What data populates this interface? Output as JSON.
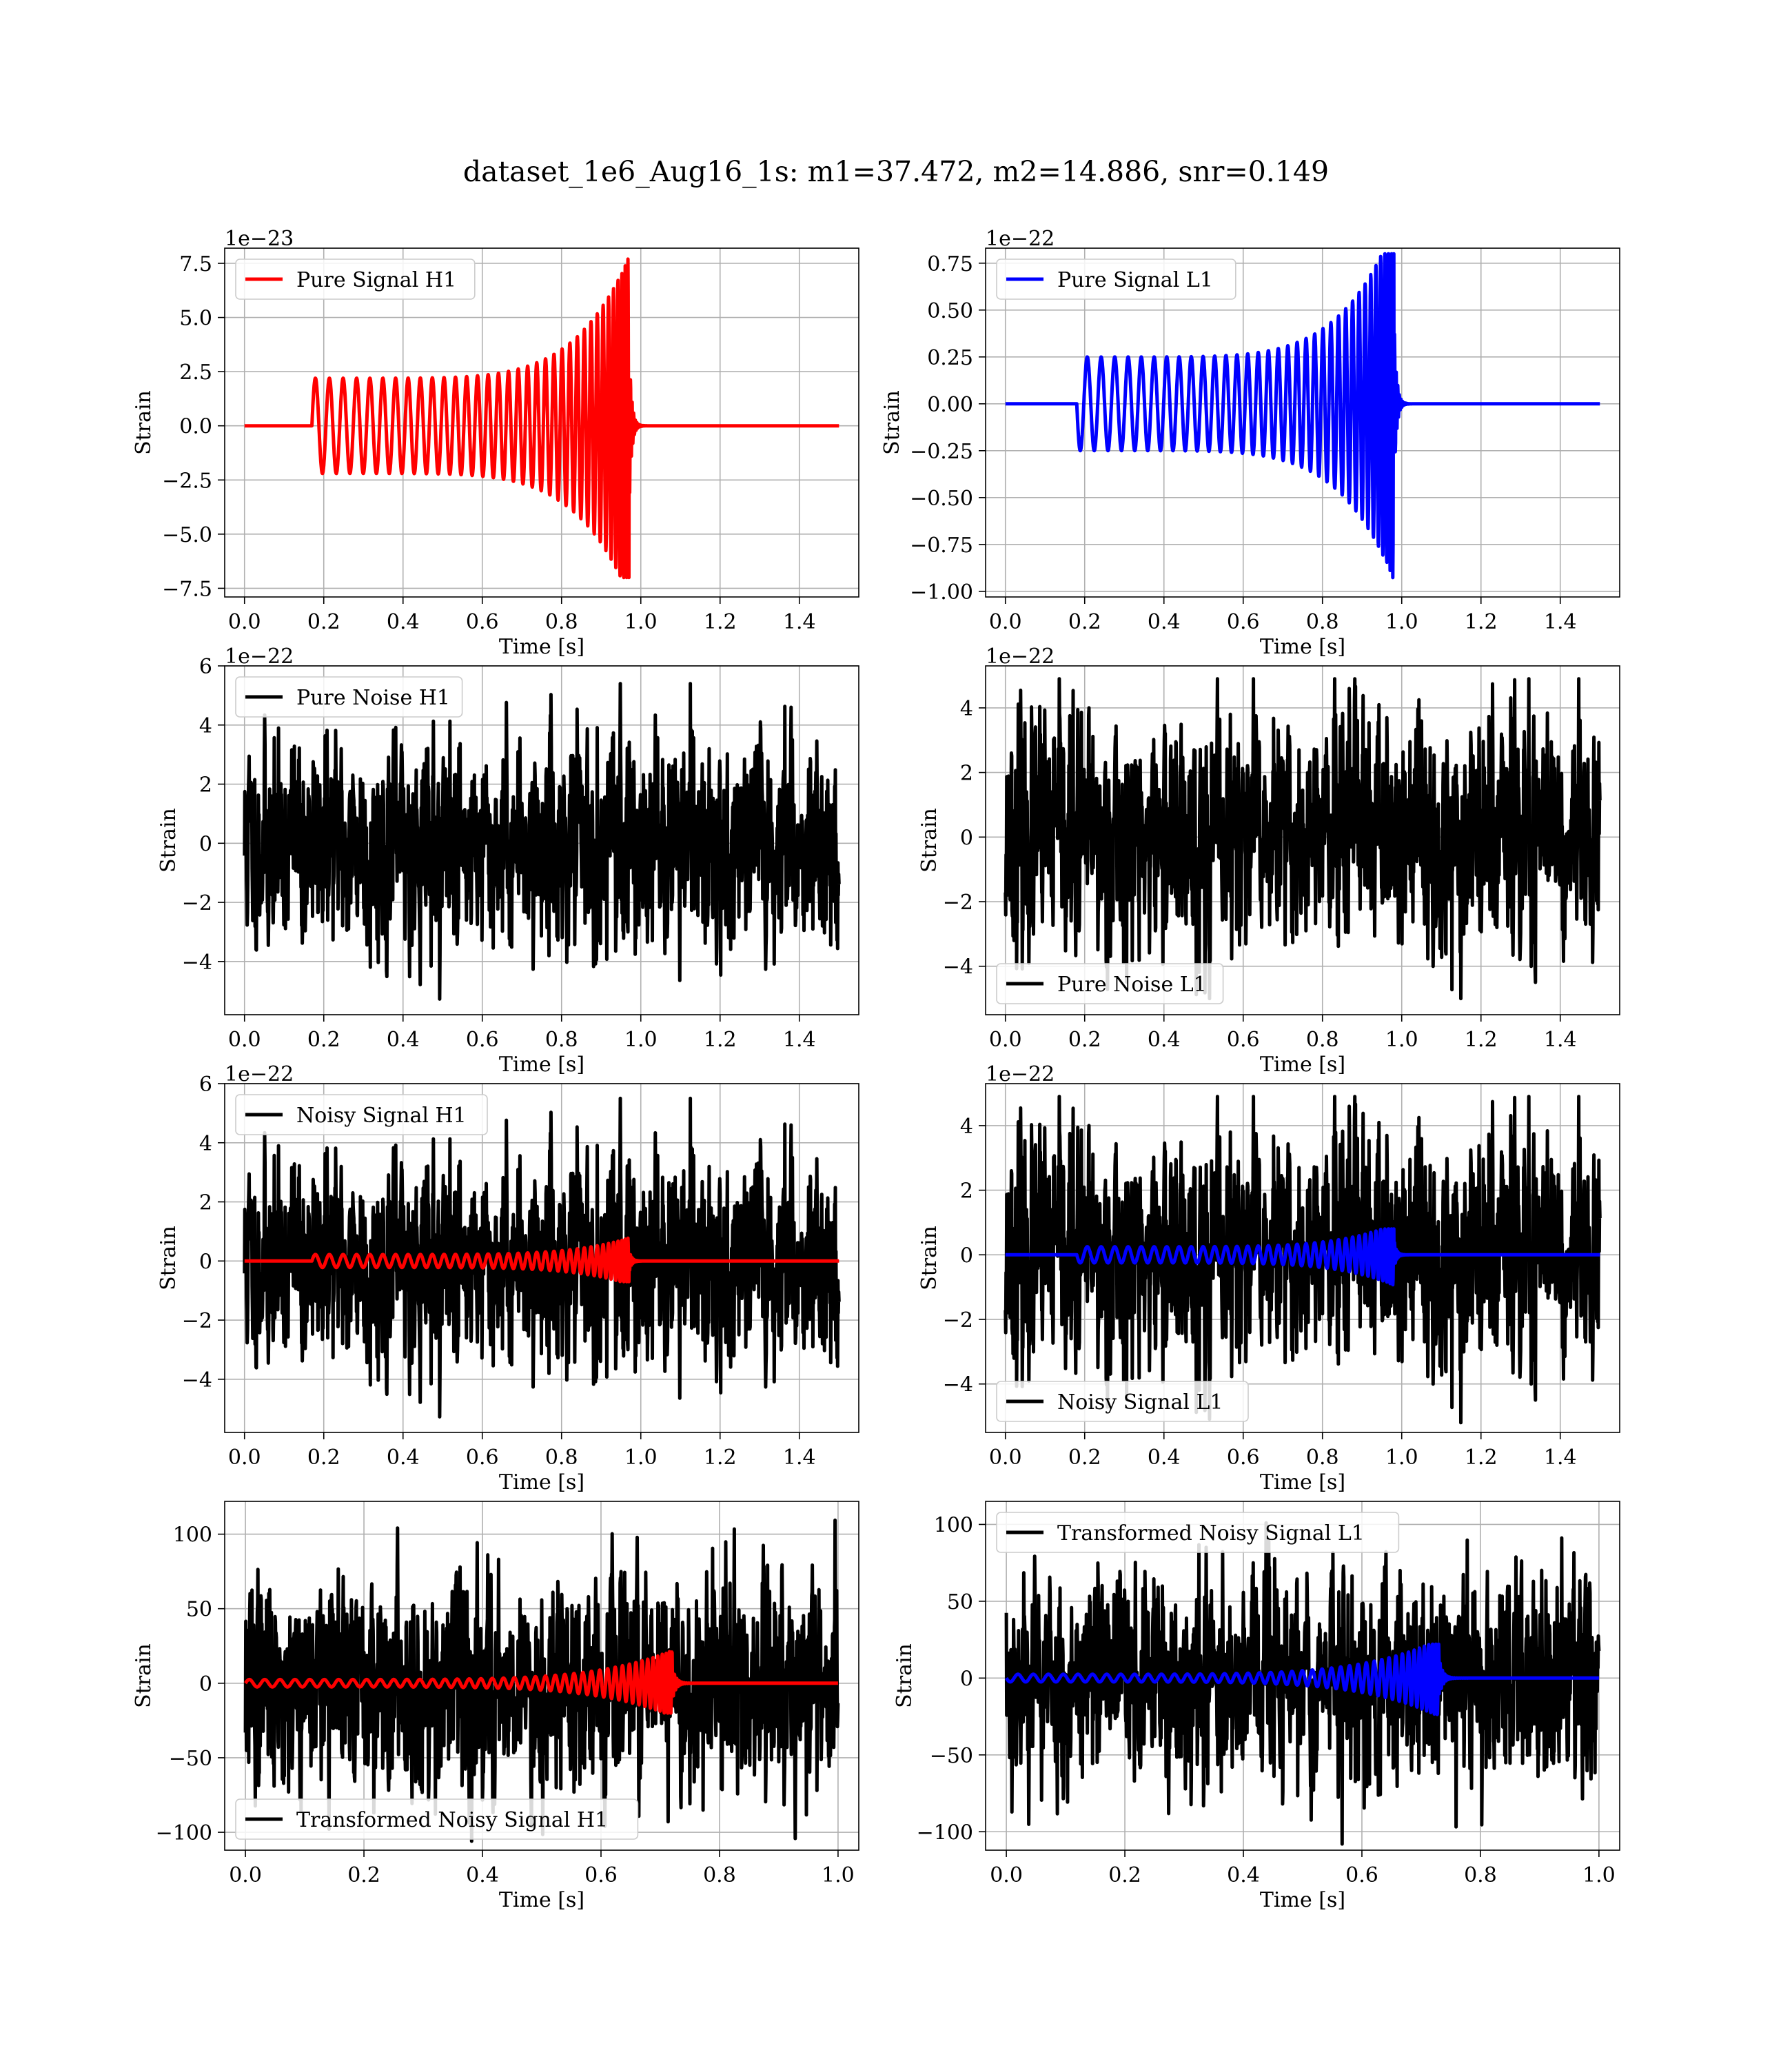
{
  "figure": {
    "suptitle": "dataset_1e6_Aug16_1s: m1=37.472, m2=14.886, snr=0.149",
    "colors": {
      "h1_signal": "#ff0000",
      "l1_signal": "#0000ff",
      "noise": "#000000",
      "grid": "#b0b0b0"
    }
  },
  "chart_data": [
    {
      "type": "line",
      "panel": "pure-signal-h1",
      "title": "",
      "xlabel": "Time [s]",
      "ylabel": "Strain",
      "offset_text": "1e−23",
      "xlim": [
        -0.05,
        1.55
      ],
      "ylim": [
        -7.9,
        8.2
      ],
      "xticks": [
        "0.0",
        "0.2",
        "0.4",
        "0.6",
        "0.8",
        "1.0",
        "1.2",
        "1.4"
      ],
      "yticks": [
        "−7.5",
        "−5.0",
        "−2.5",
        "0.0",
        "2.5",
        "5.0",
        "7.5"
      ],
      "ytick_values": [
        -7.5,
        -5.0,
        -2.5,
        0.0,
        2.5,
        5.0,
        7.5
      ],
      "legend": {
        "location": "upper left",
        "entries": [
          {
            "label": "Pure Signal H1",
            "color": "#ff0000"
          }
        ]
      },
      "series": [
        {
          "name": "Pure Signal H1",
          "color": "#ff0000",
          "kind": "chirp",
          "t_start": 0.17,
          "t_merge": 0.97,
          "t_end": 1.5,
          "f_start": 28,
          "amp_start": 2.2,
          "amp_max": 7.8,
          "amp_min": -7.0,
          "sign": 1
        }
      ]
    },
    {
      "type": "line",
      "panel": "pure-signal-l1",
      "title": "",
      "xlabel": "Time [s]",
      "ylabel": "Strain",
      "offset_text": "1e−22",
      "xlim": [
        -0.05,
        1.55
      ],
      "ylim": [
        -1.03,
        0.83
      ],
      "xticks": [
        "0.0",
        "0.2",
        "0.4",
        "0.6",
        "0.8",
        "1.0",
        "1.2",
        "1.4"
      ],
      "yticks": [
        "−1.00",
        "−0.75",
        "−0.50",
        "−0.25",
        "0.00",
        "0.25",
        "0.50",
        "0.75"
      ],
      "ytick_values": [
        -1.0,
        -0.75,
        -0.5,
        -0.25,
        0.0,
        0.25,
        0.5,
        0.75
      ],
      "legend": {
        "location": "upper left",
        "entries": [
          {
            "label": "Pure Signal L1",
            "color": "#0000ff"
          }
        ]
      },
      "series": [
        {
          "name": "Pure Signal L1",
          "color": "#0000ff",
          "kind": "chirp",
          "t_start": 0.18,
          "t_merge": 0.98,
          "t_end": 1.5,
          "f_start": 28,
          "amp_start": 0.25,
          "amp_max": 0.8,
          "amp_min": -0.94,
          "sign": -1
        }
      ]
    },
    {
      "type": "line",
      "panel": "pure-noise-h1",
      "title": "",
      "xlabel": "Time [s]",
      "ylabel": "Strain",
      "offset_text": "1e−22",
      "xlim": [
        -0.05,
        1.55
      ],
      "ylim": [
        -5.8,
        6.0
      ],
      "xticks": [
        "0.0",
        "0.2",
        "0.4",
        "0.6",
        "0.8",
        "1.0",
        "1.2",
        "1.4"
      ],
      "yticks": [
        "−4",
        "−2",
        "0",
        "2",
        "4",
        "6"
      ],
      "ytick_values": [
        -4,
        -2,
        0,
        2,
        4,
        6
      ],
      "legend": {
        "location": "upper left",
        "entries": [
          {
            "label": "Pure Noise H1",
            "color": "#000000"
          }
        ]
      },
      "series": [
        {
          "name": "Pure Noise H1",
          "color": "#000000",
          "kind": "noise",
          "t_start": 0.0,
          "t_end": 1.5,
          "std": 1.5,
          "min": -5.3,
          "max": 5.4,
          "seed": 11
        }
      ]
    },
    {
      "type": "line",
      "panel": "pure-noise-l1",
      "title": "",
      "xlabel": "Time [s]",
      "ylabel": "Strain",
      "offset_text": "1e−22",
      "xlim": [
        -0.05,
        1.55
      ],
      "ylim": [
        -5.5,
        5.3
      ],
      "xticks": [
        "0.0",
        "0.2",
        "0.4",
        "0.6",
        "0.8",
        "1.0",
        "1.2",
        "1.4"
      ],
      "yticks": [
        "−4",
        "−2",
        "0",
        "2",
        "4"
      ],
      "ytick_values": [
        -4,
        -2,
        0,
        2,
        4
      ],
      "legend": {
        "location": "lower left",
        "entries": [
          {
            "label": "Pure Noise L1",
            "color": "#000000"
          }
        ]
      },
      "series": [
        {
          "name": "Pure Noise L1",
          "color": "#000000",
          "kind": "noise",
          "t_start": 0.0,
          "t_end": 1.5,
          "std": 1.55,
          "min": -5.0,
          "max": 4.9,
          "seed": 23
        }
      ]
    },
    {
      "type": "line",
      "panel": "noisy-signal-h1",
      "title": "",
      "xlabel": "Time [s]",
      "ylabel": "Strain",
      "offset_text": "1e−22",
      "xlim": [
        -0.05,
        1.55
      ],
      "ylim": [
        -5.8,
        6.0
      ],
      "xticks": [
        "0.0",
        "0.2",
        "0.4",
        "0.6",
        "0.8",
        "1.0",
        "1.2",
        "1.4"
      ],
      "yticks": [
        "−4",
        "−2",
        "0",
        "2",
        "4",
        "6"
      ],
      "ytick_values": [
        -4,
        -2,
        0,
        2,
        4,
        6
      ],
      "legend": {
        "location": "upper left",
        "entries": [
          {
            "label": "Noisy Signal H1",
            "color": "#000000"
          }
        ]
      },
      "series": [
        {
          "name": "Noisy Signal H1",
          "color": "#000000",
          "kind": "noise",
          "t_start": 0.0,
          "t_end": 1.5,
          "std": 1.5,
          "min": -5.4,
          "max": 5.5,
          "seed": 11
        },
        {
          "name": "Pure Signal H1",
          "color": "#ff0000",
          "kind": "chirp",
          "t_start": 0.17,
          "t_merge": 0.97,
          "t_end": 1.5,
          "f_start": 28,
          "amp_start": 0.22,
          "amp_max": 0.78,
          "amp_min": -0.7,
          "sign": 1
        }
      ]
    },
    {
      "type": "line",
      "panel": "noisy-signal-l1",
      "title": "",
      "xlabel": "Time [s]",
      "ylabel": "Strain",
      "offset_text": "1e−22",
      "xlim": [
        -0.05,
        1.55
      ],
      "ylim": [
        -5.5,
        5.3
      ],
      "xticks": [
        "0.0",
        "0.2",
        "0.4",
        "0.6",
        "0.8",
        "1.0",
        "1.2",
        "1.4"
      ],
      "yticks": [
        "−4",
        "−2",
        "0",
        "2",
        "4"
      ],
      "ytick_values": [
        -4,
        -2,
        0,
        2,
        4
      ],
      "legend": {
        "location": "lower left",
        "entries": [
          {
            "label": "Noisy Signal L1",
            "color": "#000000"
          }
        ]
      },
      "series": [
        {
          "name": "Noisy Signal L1",
          "color": "#000000",
          "kind": "noise",
          "t_start": 0.0,
          "t_end": 1.5,
          "std": 1.55,
          "min": -5.2,
          "max": 4.9,
          "seed": 23
        },
        {
          "name": "Pure Signal L1",
          "color": "#0000ff",
          "kind": "chirp",
          "t_start": 0.18,
          "t_merge": 0.98,
          "t_end": 1.5,
          "f_start": 28,
          "amp_start": 0.25,
          "amp_max": 0.8,
          "amp_min": -0.94,
          "sign": -1
        }
      ]
    },
    {
      "type": "line",
      "panel": "transformed-noisy-signal-h1",
      "title": "",
      "xlabel": "Time [s]",
      "ylabel": "Strain",
      "offset_text": "",
      "xlim": [
        -0.035,
        1.035
      ],
      "ylim": [
        -112,
        122
      ],
      "xticks": [
        "0.0",
        "0.2",
        "0.4",
        "0.6",
        "0.8",
        "1.0"
      ],
      "yticks": [
        "−100",
        "−50",
        "0",
        "50",
        "100"
      ],
      "ytick_values": [
        -100,
        -50,
        0,
        50,
        100
      ],
      "legend": {
        "location": "lower left",
        "entries": [
          {
            "label": "Transformed Noisy Signal H1",
            "color": "#000000"
          }
        ]
      },
      "series": [
        {
          "name": "Transformed Noisy Signal H1",
          "color": "#000000",
          "kind": "noise",
          "t_start": 0.0,
          "t_end": 1.0,
          "std": 30,
          "min": -106,
          "max": 111,
          "seed": 37
        },
        {
          "name": "Pure Signal H1",
          "color": "#ff0000",
          "kind": "chirp",
          "t_start": 0.0,
          "t_merge": 0.72,
          "t_end": 1.0,
          "f_start": 38,
          "amp_start": 2.5,
          "amp_max": 22,
          "amp_min": -20,
          "sign": 1
        }
      ]
    },
    {
      "type": "line",
      "panel": "transformed-noisy-signal-l1",
      "title": "",
      "xlabel": "Time [s]",
      "ylabel": "Strain",
      "offset_text": "",
      "xlim": [
        -0.035,
        1.035
      ],
      "ylim": [
        -112,
        115
      ],
      "xticks": [
        "0.0",
        "0.2",
        "0.4",
        "0.6",
        "0.8",
        "1.0"
      ],
      "yticks": [
        "−100",
        "−50",
        "0",
        "50",
        "100"
      ],
      "ytick_values": [
        -100,
        -50,
        0,
        50,
        100
      ],
      "legend": {
        "location": "upper left",
        "entries": [
          {
            "label": "Transformed Noisy Signal L1",
            "color": "#000000"
          }
        ]
      },
      "series": [
        {
          "name": "Transformed Noisy Signal L1",
          "color": "#000000",
          "kind": "noise",
          "t_start": 0.0,
          "t_end": 1.0,
          "std": 30,
          "min": -108,
          "max": 101,
          "seed": 53
        },
        {
          "name": "Pure Signal L1",
          "color": "#0000ff",
          "kind": "chirp",
          "t_start": 0.0,
          "t_merge": 0.73,
          "t_end": 1.0,
          "f_start": 38,
          "amp_start": 2.5,
          "amp_max": 22,
          "amp_min": -25,
          "sign": -1
        }
      ]
    }
  ]
}
